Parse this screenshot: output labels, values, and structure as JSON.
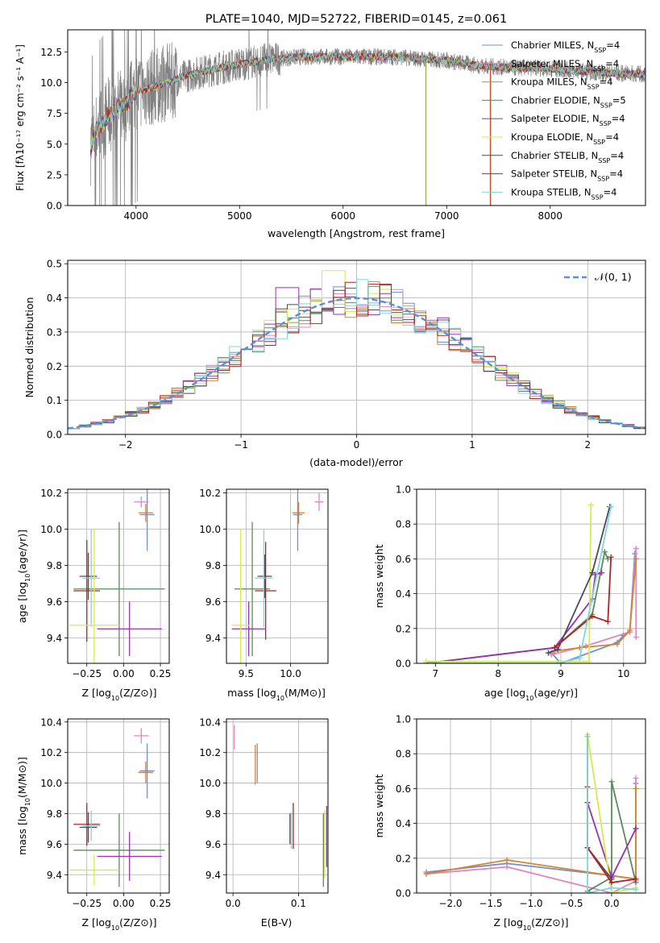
{
  "chart_data": [
    {
      "id": "spectrum",
      "type": "line",
      "title": "PLATE=1040, MJD=52722, FIBERID=0145, z=0.061",
      "xlabel": "wavelength [Angstrom, rest frame]",
      "ylabel": "Flux [fλ10⁻¹⁷ erg cm⁻² s⁻¹ A⁻¹]",
      "xlim": [
        3340,
        8920
      ],
      "ylim": [
        0,
        14.3
      ],
      "xticks": [
        4000,
        5000,
        6000,
        7000,
        8000
      ],
      "yticks": [
        0.0,
        2.5,
        5.0,
        7.5,
        10.0,
        12.5
      ],
      "grid": false,
      "legend_position": "right",
      "data_wavelength_range": [
        3560,
        8920
      ],
      "continuum": {
        "x": [
          3560,
          3620,
          3700,
          3800,
          3900,
          4000,
          4150,
          4300,
          4500,
          4700,
          5000,
          5300,
          5600,
          5900,
          6200,
          6500,
          6800,
          7000,
          7300,
          7600,
          7900,
          8200,
          8500,
          8900
        ],
        "y": [
          4.8,
          6.2,
          7.0,
          7.8,
          8.3,
          9.3,
          9.6,
          10.0,
          10.6,
          11.0,
          11.5,
          11.9,
          12.1,
          12.1,
          12.1,
          12.1,
          11.9,
          11.8,
          11.4,
          11.2,
          11.2,
          11.0,
          10.8,
          10.7
        ]
      },
      "series": [
        {
          "name": "Chabrier MILES, N_SSP=4",
          "label_main": "Chabrier MILES, N",
          "label_sub": "SSP",
          "label_tail": "=4",
          "color": "#6f8fd6"
        },
        {
          "name": "Salpeter MILES, N_SSP=4",
          "label_main": "Salpeter MILES, N",
          "label_sub": "SSP",
          "label_tail": "=4",
          "color": "#e384c2"
        },
        {
          "name": "Kroupa MILES, N_SSP=4",
          "label_main": "Kroupa MILES, N",
          "label_sub": "SSP",
          "label_tail": "=4",
          "color": "#d7852c"
        },
        {
          "name": "Chabrier ELODIE, N_SSP=5",
          "label_main": "Chabrier ELODIE, N",
          "label_sub": "SSP",
          "label_tail": "=5",
          "color": "#5a8a5a"
        },
        {
          "name": "Salpeter ELODIE, N_SSP=4",
          "label_main": "Salpeter ELODIE, N",
          "label_sub": "SSP",
          "label_tail": "=4",
          "color": "#9b30b0"
        },
        {
          "name": "Kroupa ELODIE, N_SSP=4",
          "label_main": "Kroupa ELODIE, N",
          "label_sub": "SSP",
          "label_tail": "=4",
          "color": "#d8ea4a"
        },
        {
          "name": "Chabrier STELIB, N_SSP=4",
          "label_main": "Chabrier STELIB, N",
          "label_sub": "SSP",
          "label_tail": "=4",
          "color": "#4a4a5a"
        },
        {
          "name": "Salpeter STELIB, N_SSP=4",
          "label_main": "Salpeter STELIB, N",
          "label_sub": "SSP",
          "label_tail": "=4",
          "color": "#b22222"
        },
        {
          "name": "Kroupa STELIB, N_SSP=4",
          "label_main": "Kroupa STELIB, N",
          "label_sub": "SSP",
          "label_tail": "=4",
          "color": "#7fd8d8"
        }
      ],
      "data_color": "#808080"
    },
    {
      "id": "residuals",
      "type": "histogram",
      "xlabel": "(data-model)/error",
      "ylabel": "Normed distribution",
      "xlim": [
        -2.5,
        2.5
      ],
      "ylim": [
        0,
        0.51
      ],
      "xticks": [
        -2,
        -1,
        0,
        1,
        2
      ],
      "xtick_labels": [
        "−2",
        "−1",
        "0",
        "1",
        "2"
      ],
      "yticks": [
        0.0,
        0.1,
        0.2,
        0.3,
        0.4,
        0.5
      ],
      "grid": true,
      "bin_width": 0.1,
      "reference_curve": {
        "name": "N(0,1)",
        "label": "𝒩(0, 1)",
        "color": "#5b8fd9",
        "style": "dashed"
      },
      "legend_position": "top-right",
      "peak_bins": [
        {
          "x": -0.2,
          "y": 0.48
        },
        {
          "x": -0.6,
          "y": 0.43
        },
        {
          "x": 0.2,
          "y": 0.44
        }
      ],
      "colors": [
        "#6f8fd6",
        "#e384c2",
        "#d7852c",
        "#5a8a5a",
        "#9b30b0",
        "#d8ea4a",
        "#4a4a5a",
        "#b22222",
        "#7fd8d8"
      ]
    },
    {
      "id": "age_vs_Z",
      "type": "errorbar",
      "xlabel_main": "Z [log",
      "xlabel_sub": "10",
      "xlabel_tail": "(Z/Z⊙)]",
      "ylabel_main": "age  [log",
      "ylabel_sub": "10",
      "ylabel_tail": "(age/yr)]",
      "xlim": [
        -0.38,
        0.31
      ],
      "ylim": [
        9.26,
        10.22
      ],
      "xticks": [
        -0.25,
        0.0,
        0.25
      ],
      "xtick_labels": [
        "−0.25",
        "0.00",
        "0.25"
      ],
      "yticks": [
        9.4,
        9.6,
        9.8,
        10.0,
        10.2
      ],
      "grid": true,
      "points": [
        {
          "x": 0.15,
          "y": 10.09,
          "xerr": 0.05,
          "yerr": 0.05,
          "color": "#d7852c"
        },
        {
          "x": 0.16,
          "y": 10.08,
          "xerr": 0.05,
          "yerr": 0.2,
          "color": "#6f8fd6"
        },
        {
          "x": 0.12,
          "y": 10.15,
          "xerr": 0.05,
          "yerr": 0.03,
          "color": "#e384c2"
        },
        {
          "x": -0.03,
          "y": 9.67,
          "xerr": 0.31,
          "yerr": 0.37,
          "color": "#5a8a5a"
        },
        {
          "x": -0.24,
          "y": 9.74,
          "xerr": 0.06,
          "yerr": 0.13,
          "color": "#4a4a5a"
        },
        {
          "x": -0.25,
          "y": 9.66,
          "xerr": 0.09,
          "yerr": 0.28,
          "color": "#b22222"
        },
        {
          "x": -0.22,
          "y": 9.73,
          "xerr": 0.06,
          "yerr": 0.27,
          "color": "#7fd8d8"
        },
        {
          "x": 0.04,
          "y": 9.45,
          "xerr": 0.22,
          "yerr": 0.15,
          "color": "#9b30b0"
        },
        {
          "x": -0.2,
          "y": 9.47,
          "xerr": 0.17,
          "yerr": 0.53,
          "color": "#d8ea4a"
        }
      ]
    },
    {
      "id": "age_vs_mass",
      "type": "errorbar",
      "xlabel_main": "mass [log",
      "xlabel_sub": "10",
      "xlabel_tail": "(M/M⊙)]",
      "xlim": [
        9.28,
        10.42
      ],
      "ylim": [
        9.26,
        10.22
      ],
      "xticks": [
        9.5,
        10.0
      ],
      "xtick_labels": [
        "9.5",
        "10.0"
      ],
      "yticks": [
        9.4,
        9.6,
        9.8,
        10.0,
        10.2
      ],
      "grid": true,
      "points": [
        {
          "x": 10.09,
          "y": 10.09,
          "xerr": 0.07,
          "yerr": 0.06,
          "color": "#d7852c"
        },
        {
          "x": 10.08,
          "y": 10.08,
          "xerr": 0.05,
          "yerr": 0.2,
          "color": "#6f8fd6"
        },
        {
          "x": 10.32,
          "y": 10.15,
          "xerr": 0.05,
          "yerr": 0.05,
          "color": "#e384c2"
        },
        {
          "x": 9.57,
          "y": 9.67,
          "xerr": 0.2,
          "yerr": 0.37,
          "color": "#5a8a5a"
        },
        {
          "x": 9.71,
          "y": 9.74,
          "xerr": 0.08,
          "yerr": 0.12,
          "color": "#4a4a5a"
        },
        {
          "x": 9.72,
          "y": 9.66,
          "xerr": 0.12,
          "yerr": 0.27,
          "color": "#b22222"
        },
        {
          "x": 9.7,
          "y": 9.73,
          "xerr": 0.1,
          "yerr": 0.27,
          "color": "#7fd8d8"
        },
        {
          "x": 9.53,
          "y": 9.45,
          "xerr": 0.19,
          "yerr": 0.15,
          "color": "#9b30b0"
        },
        {
          "x": 9.44,
          "y": 9.47,
          "xerr": 0.1,
          "yerr": 0.53,
          "color": "#d8ea4a"
        }
      ]
    },
    {
      "id": "weight_vs_age",
      "type": "line",
      "xlabel_main": "age  [log",
      "xlabel_sub": "10",
      "xlabel_tail": "(age/yr)]",
      "ylabel": "mass weight",
      "xlim": [
        6.7,
        10.35
      ],
      "ylim": [
        0,
        1.0
      ],
      "xticks": [
        7,
        8,
        9,
        10
      ],
      "yticks": [
        0.0,
        0.2,
        0.4,
        0.6,
        0.8,
        1.0
      ],
      "grid": true,
      "series": [
        {
          "color": "#6f8fd6",
          "x": [
            8.85,
            9.0,
            9.9,
            10.0,
            10.1,
            10.18
          ],
          "y": [
            0.06,
            0.0,
            0.12,
            0.16,
            0.18,
            0.63
          ]
        },
        {
          "color": "#e384c2",
          "x": [
            8.85,
            9.4,
            10.1,
            10.2,
            10.2
          ],
          "y": [
            0.05,
            0.1,
            0.18,
            0.66,
            0.15
          ]
        },
        {
          "color": "#d7852c",
          "x": [
            8.9,
            9.3,
            9.9,
            10.1,
            10.2
          ],
          "y": [
            0.07,
            0.09,
            0.11,
            0.19,
            0.6
          ]
        },
        {
          "color": "#5a8a5a",
          "x": [
            6.85,
            8.9,
            9.5,
            9.7,
            9.75
          ],
          "y": [
            0.0,
            0.09,
            0.28,
            0.64,
            0.6
          ]
        },
        {
          "color": "#9b30b0",
          "x": [
            6.85,
            8.9,
            9.5,
            9.55,
            9.65
          ],
          "y": [
            0.0,
            0.09,
            0.37,
            0.51,
            0.52
          ]
        },
        {
          "color": "#d8ea4a",
          "x": [
            6.85,
            9.45,
            9.48
          ],
          "y": [
            0.01,
            0.01,
            0.91
          ]
        },
        {
          "color": "#4a4a5a",
          "x": [
            8.8,
            8.95,
            9.5,
            9.78
          ],
          "y": [
            0.06,
            0.08,
            0.52,
            0.9
          ]
        },
        {
          "color": "#b22222",
          "x": [
            8.9,
            9.5,
            9.75,
            9.8
          ],
          "y": [
            0.09,
            0.27,
            0.24,
            0.61
          ]
        },
        {
          "color": "#7fd8d8",
          "x": [
            6.9,
            8.95,
            9.3,
            9.8
          ],
          "y": [
            0.0,
            0.0,
            0.03,
            0.9
          ]
        }
      ]
    },
    {
      "id": "mass_vs_Z",
      "type": "errorbar",
      "xlabel_main": "Z [log",
      "xlabel_sub": "10",
      "xlabel_tail": "(Z/Z⊙)]",
      "ylabel_main": "mass [log",
      "ylabel_sub": "10",
      "ylabel_tail": "(M/M⊙)]",
      "xlim": [
        -0.38,
        0.31
      ],
      "ylim": [
        9.28,
        10.42
      ],
      "xticks": [
        -0.25,
        0.0,
        0.25
      ],
      "xtick_labels": [
        "−0.25",
        "0.00",
        "0.25"
      ],
      "yticks": [
        9.4,
        9.6,
        9.8,
        10.0,
        10.2,
        10.4
      ],
      "grid": true,
      "points": [
        {
          "x": 0.15,
          "y": 10.07,
          "xerr": 0.05,
          "yerr": 0.07,
          "color": "#d7852c"
        },
        {
          "x": 0.16,
          "y": 10.08,
          "xerr": 0.05,
          "yerr": 0.18,
          "color": "#6f8fd6"
        },
        {
          "x": 0.12,
          "y": 10.31,
          "xerr": 0.05,
          "yerr": 0.05,
          "color": "#e384c2"
        },
        {
          "x": -0.03,
          "y": 9.56,
          "xerr": 0.31,
          "yerr": 0.24,
          "color": "#5a8a5a"
        },
        {
          "x": -0.24,
          "y": 9.71,
          "xerr": 0.06,
          "yerr": 0.1,
          "color": "#4a4a5a"
        },
        {
          "x": -0.25,
          "y": 9.73,
          "xerr": 0.09,
          "yerr": 0.14,
          "color": "#b22222"
        },
        {
          "x": -0.22,
          "y": 9.72,
          "xerr": 0.06,
          "yerr": 0.1,
          "color": "#7fd8d8"
        },
        {
          "x": 0.04,
          "y": 9.52,
          "xerr": 0.22,
          "yerr": 0.16,
          "color": "#9b30b0"
        },
        {
          "x": -0.2,
          "y": 9.43,
          "xerr": 0.17,
          "yerr": 0.1,
          "color": "#d8ea4a"
        }
      ]
    },
    {
      "id": "mass_vs_EBV",
      "type": "errorbar",
      "xlabel": "E(B-V)",
      "xlim": [
        -0.01,
        0.145
      ],
      "ylim": [
        9.28,
        10.42
      ],
      "xticks": [
        0.0,
        0.1
      ],
      "xtick_labels": [
        "0.0",
        "0.1"
      ],
      "yticks": [
        9.4,
        9.6,
        9.8,
        10.0,
        10.2,
        10.4
      ],
      "grid": true,
      "points": [
        {
          "x": 0.002,
          "y": 10.3,
          "xerr": 0,
          "yerr": 0.08,
          "color": "#e384c2"
        },
        {
          "x": 0.034,
          "y": 10.12,
          "xerr": 0,
          "yerr": 0.13,
          "color": "#d7852c"
        },
        {
          "x": 0.037,
          "y": 10.13,
          "xerr": 0,
          "yerr": 0.13,
          "color": "#6f8fd6"
        },
        {
          "x": 0.087,
          "y": 9.7,
          "xerr": 0,
          "yerr": 0.1,
          "color": "#4a4a5a"
        },
        {
          "x": 0.089,
          "y": 9.69,
          "xerr": 0,
          "yerr": 0.12,
          "color": "#7fd8d8"
        },
        {
          "x": 0.092,
          "y": 9.72,
          "xerr": 0,
          "yerr": 0.15,
          "color": "#b22222"
        },
        {
          "x": 0.138,
          "y": 9.56,
          "xerr": 0,
          "yerr": 0.24,
          "color": "#5a8a5a"
        },
        {
          "x": 0.14,
          "y": 9.6,
          "xerr": 0,
          "yerr": 0.22,
          "color": "#d8ea4a"
        },
        {
          "x": 0.143,
          "y": 9.65,
          "xerr": 0,
          "yerr": 0.2,
          "color": "#9b30b0"
        }
      ]
    },
    {
      "id": "weight_vs_Z",
      "type": "line",
      "xlabel_main": "Z [log",
      "xlabel_sub": "10",
      "xlabel_tail": "(Z/Z⊙)]",
      "ylabel": "mass weight",
      "xlim": [
        -2.42,
        0.42
      ],
      "ylim": [
        0,
        1.0
      ],
      "xticks": [
        -2.0,
        -1.5,
        -1.0,
        -0.5,
        0.0
      ],
      "xtick_labels": [
        "−2.0",
        "−1.5",
        "−1.0",
        "−0.5",
        "0.0"
      ],
      "yticks": [
        0.0,
        0.2,
        0.4,
        0.6,
        0.8,
        1.0
      ],
      "grid": true,
      "series": [
        {
          "color": "#6f8fd6",
          "x": [
            -2.3,
            -1.3,
            0.0,
            0.3,
            0.3
          ],
          "y": [
            0.12,
            0.17,
            0.1,
            0.08,
            0.63
          ]
        },
        {
          "color": "#e384c2",
          "x": [
            -2.3,
            -1.3,
            0.0,
            0.3,
            0.3
          ],
          "y": [
            0.11,
            0.15,
            0.0,
            0.07,
            0.66
          ]
        },
        {
          "color": "#d7852c",
          "x": [
            -2.3,
            -1.3,
            0.0,
            0.3,
            0.3
          ],
          "y": [
            0.11,
            0.19,
            0.1,
            0.08,
            0.6
          ]
        },
        {
          "color": "#5a8a5a",
          "x": [
            -0.3,
            0.0,
            0.0,
            0.3
          ],
          "y": [
            0.01,
            0.09,
            0.64,
            0.06
          ]
        },
        {
          "color": "#9b30b0",
          "x": [
            -0.3,
            -0.3,
            0.0,
            0.3,
            0.3
          ],
          "y": [
            0.52,
            0.52,
            0.09,
            0.37,
            0.37
          ]
        },
        {
          "color": "#d8ea4a",
          "x": [
            -0.3,
            -0.3,
            0.0,
            0.3
          ],
          "y": [
            0.91,
            0.91,
            0.0,
            0.03
          ]
        },
        {
          "color": "#4a4a5a",
          "x": [
            -0.3,
            -0.3,
            0.0
          ],
          "y": [
            0.9,
            0.26,
            0.08
          ]
        },
        {
          "color": "#b22222",
          "x": [
            -0.3,
            -0.3,
            0.0,
            0.3
          ],
          "y": [
            0.61,
            0.26,
            0.06,
            0.08
          ]
        },
        {
          "color": "#7fd8d8",
          "x": [
            -0.3,
            -0.3,
            0.0,
            0.3
          ],
          "y": [
            0.9,
            0.0,
            0.03,
            0.02
          ]
        }
      ]
    }
  ]
}
